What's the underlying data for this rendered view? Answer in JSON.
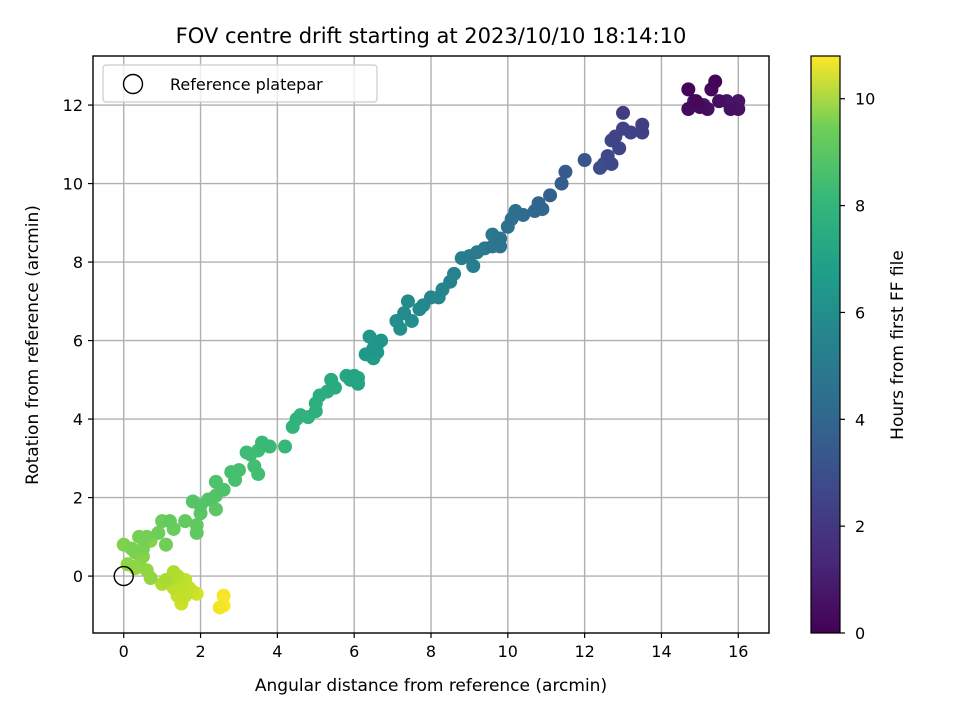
{
  "chart_data": {
    "type": "scatter",
    "title": "FOV centre drift starting at 2023/10/10 18:14:10",
    "xlabel": "Angular distance from reference (arcmin)",
    "ylabel": "Rotation from reference (arcmin)",
    "xlim": [
      -0.8,
      16.8
    ],
    "ylim": [
      -1.45,
      13.25
    ],
    "xticks": [
      0,
      2,
      4,
      6,
      8,
      10,
      12,
      14,
      16
    ],
    "yticks": [
      0,
      2,
      4,
      6,
      8,
      10,
      12
    ],
    "grid": true,
    "legend": {
      "position": "top-left",
      "entries": [
        {
          "label": "Reference platepar",
          "marker": "open-circle"
        }
      ]
    },
    "reference_point": {
      "x": 0,
      "y": 0
    },
    "colorbar": {
      "label": "Hours from first FF file",
      "colormap": "viridis",
      "range": [
        0,
        10.8
      ],
      "ticks": [
        0,
        2,
        4,
        6,
        8,
        10
      ]
    },
    "series": [
      {
        "name": "",
        "points": [
          {
            "x": 14.7,
            "y": 12.4,
            "c": 0.1
          },
          {
            "x": 15.4,
            "y": 12.6,
            "c": 0.1
          },
          {
            "x": 15.3,
            "y": 12.4,
            "c": 0.2
          },
          {
            "x": 14.9,
            "y": 12.1,
            "c": 0.2
          },
          {
            "x": 14.7,
            "y": 11.9,
            "c": 0.3
          },
          {
            "x": 15.0,
            "y": 11.95,
            "c": 0.3
          },
          {
            "x": 15.2,
            "y": 11.9,
            "c": 0.4
          },
          {
            "x": 15.5,
            "y": 12.1,
            "c": 0.4
          },
          {
            "x": 15.8,
            "y": 11.9,
            "c": 0.5
          },
          {
            "x": 16.0,
            "y": 11.9,
            "c": 0.5
          },
          {
            "x": 16.0,
            "y": 12.1,
            "c": 0.6
          },
          {
            "x": 15.7,
            "y": 12.1,
            "c": 0.6
          },
          {
            "x": 14.85,
            "y": 12.1,
            "c": 0.7
          },
          {
            "x": 15.1,
            "y": 12.0,
            "c": 0.7
          },
          {
            "x": 13.5,
            "y": 11.5,
            "c": 2.0
          },
          {
            "x": 13.0,
            "y": 11.8,
            "c": 2.0
          },
          {
            "x": 13.5,
            "y": 11.3,
            "c": 2.1
          },
          {
            "x": 13.2,
            "y": 11.3,
            "c": 2.1
          },
          {
            "x": 13.0,
            "y": 11.4,
            "c": 2.2
          },
          {
            "x": 12.8,
            "y": 11.2,
            "c": 2.2
          },
          {
            "x": 12.7,
            "y": 11.1,
            "c": 2.3
          },
          {
            "x": 12.9,
            "y": 10.9,
            "c": 2.3
          },
          {
            "x": 12.6,
            "y": 10.7,
            "c": 2.4
          },
          {
            "x": 12.7,
            "y": 10.5,
            "c": 2.4
          },
          {
            "x": 12.4,
            "y": 10.4,
            "c": 2.6
          },
          {
            "x": 12.5,
            "y": 10.5,
            "c": 2.6
          },
          {
            "x": 12.0,
            "y": 10.6,
            "c": 2.9
          },
          {
            "x": 11.5,
            "y": 10.3,
            "c": 3.1
          },
          {
            "x": 11.4,
            "y": 10.0,
            "c": 3.2
          },
          {
            "x": 11.1,
            "y": 9.7,
            "c": 3.3
          },
          {
            "x": 10.8,
            "y": 9.5,
            "c": 3.5
          },
          {
            "x": 10.7,
            "y": 9.3,
            "c": 3.6
          },
          {
            "x": 10.9,
            "y": 9.35,
            "c": 3.6
          },
          {
            "x": 10.4,
            "y": 9.2,
            "c": 3.8
          },
          {
            "x": 10.2,
            "y": 9.3,
            "c": 3.9
          },
          {
            "x": 10.1,
            "y": 9.1,
            "c": 4.0
          },
          {
            "x": 10.0,
            "y": 8.9,
            "c": 4.0
          },
          {
            "x": 9.8,
            "y": 8.6,
            "c": 4.1
          },
          {
            "x": 9.6,
            "y": 8.4,
            "c": 4.2
          },
          {
            "x": 9.8,
            "y": 8.4,
            "c": 4.2
          },
          {
            "x": 9.6,
            "y": 8.7,
            "c": 4.3
          },
          {
            "x": 9.4,
            "y": 8.35,
            "c": 4.4
          },
          {
            "x": 9.2,
            "y": 8.25,
            "c": 4.4
          },
          {
            "x": 9.0,
            "y": 8.15,
            "c": 4.5
          },
          {
            "x": 8.8,
            "y": 8.1,
            "c": 4.6
          },
          {
            "x": 9.1,
            "y": 7.9,
            "c": 4.6
          },
          {
            "x": 8.6,
            "y": 7.7,
            "c": 4.8
          },
          {
            "x": 8.5,
            "y": 7.5,
            "c": 4.8
          },
          {
            "x": 8.3,
            "y": 7.3,
            "c": 4.9
          },
          {
            "x": 8.2,
            "y": 7.1,
            "c": 5.0
          },
          {
            "x": 8.0,
            "y": 7.1,
            "c": 5.0
          },
          {
            "x": 7.8,
            "y": 6.9,
            "c": 5.1
          },
          {
            "x": 7.7,
            "y": 6.8,
            "c": 5.1
          },
          {
            "x": 7.4,
            "y": 7.0,
            "c": 5.2
          },
          {
            "x": 7.3,
            "y": 6.7,
            "c": 5.2
          },
          {
            "x": 7.5,
            "y": 6.5,
            "c": 5.3
          },
          {
            "x": 7.1,
            "y": 6.5,
            "c": 5.3
          },
          {
            "x": 7.2,
            "y": 6.3,
            "c": 5.4
          },
          {
            "x": 6.7,
            "y": 6.0,
            "c": 5.6
          },
          {
            "x": 6.4,
            "y": 6.1,
            "c": 5.7
          },
          {
            "x": 6.5,
            "y": 5.8,
            "c": 5.7
          },
          {
            "x": 6.6,
            "y": 5.7,
            "c": 5.8
          },
          {
            "x": 6.3,
            "y": 5.65,
            "c": 5.8
          },
          {
            "x": 6.5,
            "y": 5.55,
            "c": 5.9
          },
          {
            "x": 6.6,
            "y": 5.9,
            "c": 5.9
          },
          {
            "x": 6.0,
            "y": 5.1,
            "c": 6.3
          },
          {
            "x": 6.1,
            "y": 4.9,
            "c": 6.3
          },
          {
            "x": 5.9,
            "y": 5.0,
            "c": 6.4
          },
          {
            "x": 5.8,
            "y": 5.1,
            "c": 6.4
          },
          {
            "x": 6.1,
            "y": 5.05,
            "c": 6.5
          },
          {
            "x": 5.5,
            "y": 4.8,
            "c": 6.6
          },
          {
            "x": 5.4,
            "y": 5.0,
            "c": 6.6
          },
          {
            "x": 5.3,
            "y": 4.7,
            "c": 6.7
          },
          {
            "x": 5.1,
            "y": 4.6,
            "c": 6.7
          },
          {
            "x": 5.0,
            "y": 4.4,
            "c": 6.8
          },
          {
            "x": 5.0,
            "y": 4.2,
            "c": 6.8
          },
          {
            "x": 4.6,
            "y": 4.1,
            "c": 6.9
          },
          {
            "x": 4.8,
            "y": 4.05,
            "c": 6.9
          },
          {
            "x": 4.4,
            "y": 3.8,
            "c": 7.0
          },
          {
            "x": 4.5,
            "y": 4.0,
            "c": 7.0
          },
          {
            "x": 4.2,
            "y": 3.3,
            "c": 7.2
          },
          {
            "x": 3.8,
            "y": 3.3,
            "c": 7.3
          },
          {
            "x": 3.6,
            "y": 3.4,
            "c": 7.3
          },
          {
            "x": 3.5,
            "y": 3.2,
            "c": 7.4
          },
          {
            "x": 3.3,
            "y": 3.1,
            "c": 7.4
          },
          {
            "x": 3.2,
            "y": 3.15,
            "c": 7.4
          },
          {
            "x": 3.4,
            "y": 2.8,
            "c": 7.5
          },
          {
            "x": 3.5,
            "y": 2.6,
            "c": 7.5
          },
          {
            "x": 3.0,
            "y": 2.7,
            "c": 7.6
          },
          {
            "x": 2.8,
            "y": 2.65,
            "c": 7.6
          },
          {
            "x": 2.9,
            "y": 2.45,
            "c": 7.6
          },
          {
            "x": 2.6,
            "y": 2.2,
            "c": 7.7
          },
          {
            "x": 2.4,
            "y": 2.4,
            "c": 7.7
          },
          {
            "x": 2.4,
            "y": 2.05,
            "c": 7.8
          },
          {
            "x": 2.2,
            "y": 1.95,
            "c": 7.8
          },
          {
            "x": 2.0,
            "y": 1.8,
            "c": 7.9
          },
          {
            "x": 1.8,
            "y": 1.9,
            "c": 7.9
          },
          {
            "x": 2.0,
            "y": 1.6,
            "c": 8.0
          },
          {
            "x": 2.4,
            "y": 1.7,
            "c": 8.0
          },
          {
            "x": 1.9,
            "y": 1.1,
            "c": 8.1
          },
          {
            "x": 1.9,
            "y": 1.3,
            "c": 8.1
          },
          {
            "x": 1.6,
            "y": 1.4,
            "c": 8.2
          },
          {
            "x": 1.2,
            "y": 1.4,
            "c": 8.2
          },
          {
            "x": 1.3,
            "y": 1.2,
            "c": 8.3
          },
          {
            "x": 1.0,
            "y": 1.4,
            "c": 8.3
          },
          {
            "x": 0.9,
            "y": 1.1,
            "c": 8.4
          },
          {
            "x": 1.1,
            "y": 0.8,
            "c": 8.4
          },
          {
            "x": 0.6,
            "y": 1.0,
            "c": 8.5
          },
          {
            "x": 0.4,
            "y": 1.0,
            "c": 8.5
          },
          {
            "x": 0.5,
            "y": 0.7,
            "c": 8.6
          },
          {
            "x": 0.2,
            "y": 0.7,
            "c": 8.6
          },
          {
            "x": 0.0,
            "y": 0.8,
            "c": 8.7
          },
          {
            "x": 0.3,
            "y": 0.6,
            "c": 8.7
          },
          {
            "x": 0.5,
            "y": 0.5,
            "c": 8.8
          },
          {
            "x": 0.7,
            "y": 0.9,
            "c": 8.8
          },
          {
            "x": 0.4,
            "y": 0.3,
            "c": 8.9
          },
          {
            "x": 0.1,
            "y": 0.3,
            "c": 8.9
          },
          {
            "x": 0.6,
            "y": 0.15,
            "c": 9.0
          },
          {
            "x": 0.7,
            "y": -0.05,
            "c": 9.0
          },
          {
            "x": 0.3,
            "y": 0.2,
            "c": 9.1
          },
          {
            "x": 1.1,
            "y": -0.1,
            "c": 9.4
          },
          {
            "x": 1.0,
            "y": -0.2,
            "c": 9.5
          },
          {
            "x": 1.3,
            "y": 0.1,
            "c": 9.5
          },
          {
            "x": 1.4,
            "y": 0.0,
            "c": 9.6
          },
          {
            "x": 1.2,
            "y": -0.1,
            "c": 9.6
          },
          {
            "x": 1.3,
            "y": -0.3,
            "c": 9.7
          },
          {
            "x": 1.5,
            "y": -0.2,
            "c": 9.7
          },
          {
            "x": 1.6,
            "y": -0.1,
            "c": 9.8
          },
          {
            "x": 1.6,
            "y": -0.5,
            "c": 9.8
          },
          {
            "x": 1.4,
            "y": -0.5,
            "c": 9.9
          },
          {
            "x": 1.7,
            "y": -0.3,
            "c": 9.9
          },
          {
            "x": 1.8,
            "y": -0.4,
            "c": 10.0
          },
          {
            "x": 1.5,
            "y": -0.7,
            "c": 10.0
          },
          {
            "x": 1.9,
            "y": -0.45,
            "c": 10.1
          },
          {
            "x": 2.5,
            "y": -0.8,
            "c": 10.6
          },
          {
            "x": 2.6,
            "y": -0.5,
            "c": 10.7
          },
          {
            "x": 2.6,
            "y": -0.75,
            "c": 10.8
          }
        ]
      }
    ]
  }
}
